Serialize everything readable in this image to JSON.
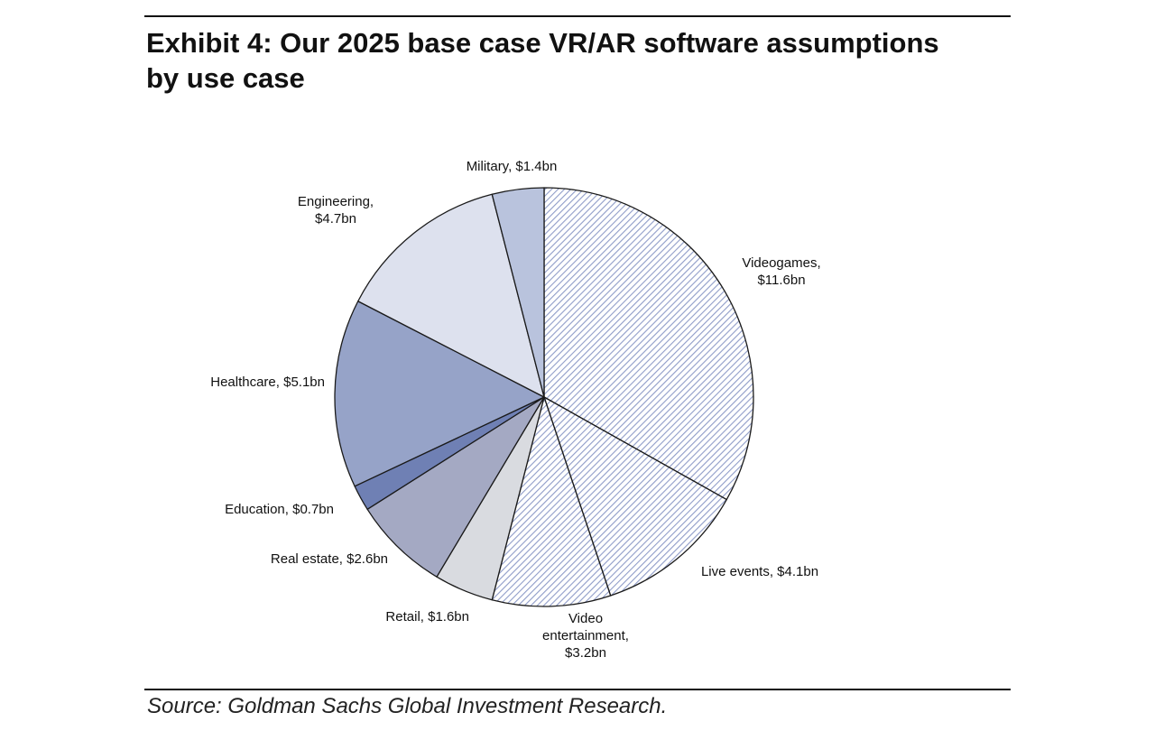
{
  "exhibit": {
    "title": "Exhibit 4: Our 2025 base case VR/AR software assumptions by use case",
    "source": "Source: Goldman Sachs Global Investment Research."
  },
  "chart_data": {
    "type": "pie",
    "title": "Exhibit 4: Our 2025 base case VR/AR software assumptions by use case",
    "unit": "$bn",
    "start": "12 o'clock",
    "direction": "clockwise",
    "slices": [
      {
        "name": "Videogames",
        "value": 11.6,
        "label_lines": [
          "Videogames,",
          "$11.6bn"
        ],
        "fill": "hatch",
        "color": "#8f9cc8"
      },
      {
        "name": "Live events",
        "value": 4.1,
        "label_lines": [
          "Live events, $4.1bn"
        ],
        "fill": "hatch",
        "color": "#8f9cc8"
      },
      {
        "name": "Video entertainment",
        "value": 3.2,
        "label_lines": [
          "Video",
          "entertainment,",
          "$3.2bn"
        ],
        "fill": "hatch",
        "color": "#8f9cc8"
      },
      {
        "name": "Retail",
        "value": 1.6,
        "label_lines": [
          "Retail, $1.6bn"
        ],
        "fill": "solid",
        "color": "#d9dbe0"
      },
      {
        "name": "Real estate",
        "value": 2.6,
        "label_lines": [
          "Real estate, $2.6bn"
        ],
        "fill": "solid",
        "color": "#a4a9c3"
      },
      {
        "name": "Education",
        "value": 0.7,
        "label_lines": [
          "Education, $0.7bn"
        ],
        "fill": "solid",
        "color": "#6f80b4"
      },
      {
        "name": "Healthcare",
        "value": 5.1,
        "label_lines": [
          "Healthcare, $5.1bn"
        ],
        "fill": "solid",
        "color": "#96a3c8"
      },
      {
        "name": "Engineering",
        "value": 4.7,
        "label_lines": [
          "Engineering,",
          "$4.7bn"
        ],
        "fill": "solid",
        "color": "#dde1ee"
      },
      {
        "name": "Military",
        "value": 1.4,
        "label_lines": [
          "Military, $1.4bn"
        ],
        "fill": "solid",
        "color": "#b9c3dd"
      }
    ]
  }
}
